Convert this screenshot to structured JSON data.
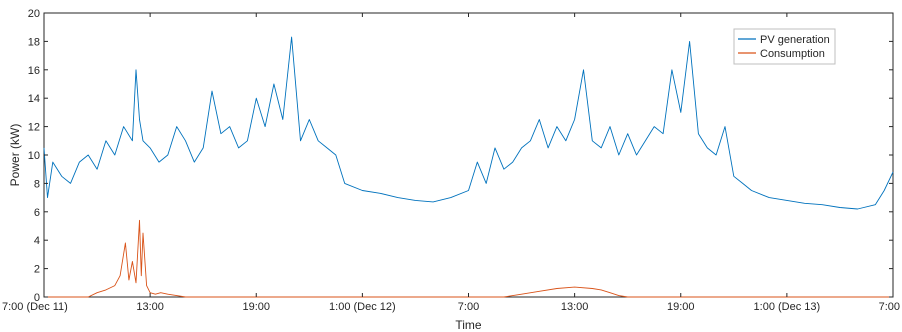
{
  "chart_data": {
    "type": "line",
    "xlabel": "Time",
    "ylabel": "Power (kW)",
    "ylim": [
      0,
      20
    ],
    "xlim": [
      "7:00 (Dec 11)",
      "7:00 (Dec 13)"
    ],
    "x_unit": "hours",
    "xlim_hours": [
      7,
      55
    ],
    "x_ticks": [
      {
        "hour": 7,
        "label": "7:00 (Dec 11)"
      },
      {
        "hour": 13,
        "label": "13:00"
      },
      {
        "hour": 19,
        "label": "19:00"
      },
      {
        "hour": 25,
        "label": "1:00 (Dec 12)"
      },
      {
        "hour": 31,
        "label": "7:00"
      },
      {
        "hour": 37,
        "label": "13:00"
      },
      {
        "hour": 43,
        "label": "19:00"
      },
      {
        "hour": 49,
        "label": "1:00 (Dec 13)"
      },
      {
        "hour": 55,
        "label": "7:00"
      }
    ],
    "y_ticks": [
      0,
      2,
      4,
      6,
      8,
      10,
      12,
      14,
      16,
      18,
      20
    ],
    "grid": false,
    "legend": "top-right",
    "series": [
      {
        "name": "PV generation",
        "color": "#0072BD",
        "x": [
          7,
          7.2,
          7.5,
          8,
          8.5,
          9,
          9.5,
          10,
          10.5,
          11,
          11.5,
          12,
          12.2,
          12.4,
          12.6,
          13,
          13.5,
          14,
          14.5,
          15,
          15.5,
          16,
          16.5,
          17,
          17.5,
          18,
          18.5,
          19,
          19.5,
          20,
          20.5,
          21,
          21.5,
          22,
          22.5,
          23,
          23.5,
          24,
          25,
          26,
          27,
          28,
          29,
          30,
          31,
          31.5,
          32,
          32.5,
          33,
          33.5,
          34,
          34.5,
          35,
          35.5,
          36,
          36.5,
          37,
          37.5,
          38,
          38.5,
          39,
          39.5,
          40,
          40.5,
          41,
          41.5,
          42,
          42.5,
          43,
          43.5,
          44,
          44.5,
          45,
          45.5,
          46,
          46.5,
          47,
          48,
          49,
          50,
          51,
          52,
          53,
          54,
          54.5,
          55
        ],
        "y": [
          10.5,
          7.0,
          9.5,
          8.5,
          8.0,
          9.5,
          10.0,
          9.0,
          11.0,
          10.0,
          12.0,
          11.0,
          16.0,
          12.5,
          11.0,
          10.5,
          9.5,
          10.0,
          12.0,
          11.0,
          9.5,
          10.5,
          14.5,
          11.5,
          12.0,
          10.5,
          11.0,
          14.0,
          12.0,
          15.0,
          12.5,
          18.3,
          11.0,
          12.5,
          11.0,
          10.5,
          10.0,
          8.0,
          7.5,
          7.3,
          7.0,
          6.8,
          6.7,
          7.0,
          7.5,
          9.5,
          8.0,
          10.5,
          9.0,
          9.5,
          10.5,
          11.0,
          12.5,
          10.5,
          12.0,
          11.0,
          12.5,
          16.0,
          11.0,
          10.5,
          12.0,
          10.0,
          11.5,
          10.0,
          11.0,
          12.0,
          11.5,
          16.0,
          13.0,
          18.0,
          11.5,
          10.5,
          10.0,
          12.0,
          8.5,
          8.0,
          7.5,
          7.0,
          6.8,
          6.6,
          6.5,
          6.3,
          6.2,
          6.5,
          7.5,
          8.8
        ]
      },
      {
        "name": "Consumption",
        "color": "#D95319",
        "x": [
          7,
          9.5,
          10,
          10.5,
          11,
          11.3,
          11.6,
          11.8,
          12,
          12.2,
          12.4,
          12.5,
          12.6,
          12.8,
          13,
          13.3,
          13.6,
          14,
          14.5,
          15,
          25,
          31,
          33,
          34,
          35,
          36,
          37,
          38,
          38.5,
          39,
          39.5,
          40,
          55
        ],
        "y": [
          0,
          0,
          0.3,
          0.5,
          0.8,
          1.5,
          3.8,
          1.2,
          2.5,
          1.0,
          5.4,
          1.5,
          4.5,
          0.8,
          0.3,
          0.2,
          0.3,
          0.2,
          0.1,
          0,
          0,
          0,
          0,
          0.2,
          0.4,
          0.6,
          0.7,
          0.6,
          0.5,
          0.3,
          0.1,
          0,
          0
        ]
      }
    ]
  }
}
